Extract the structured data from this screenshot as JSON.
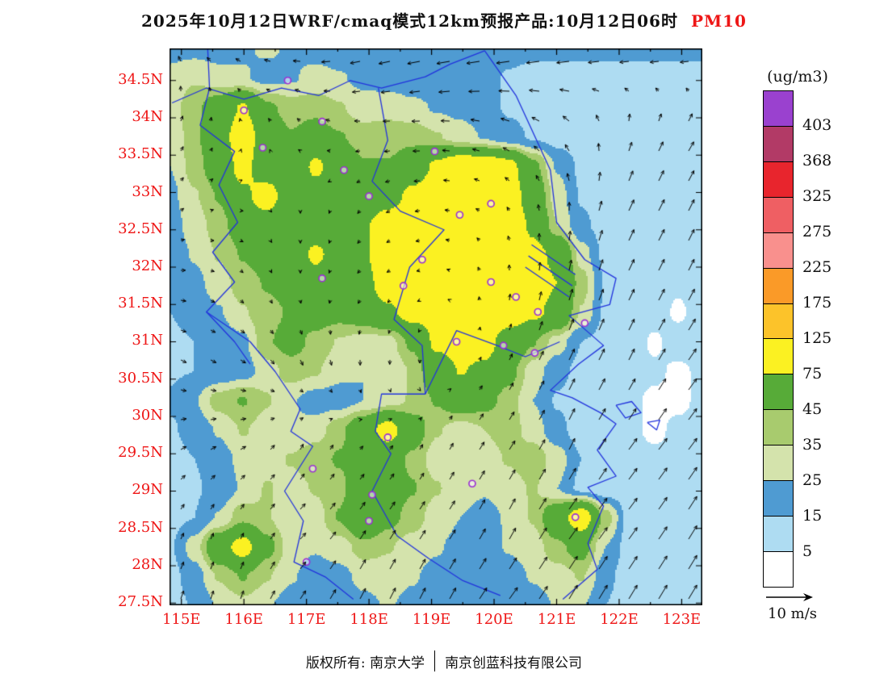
{
  "footer": {
    "owner": "版权所有: 南京大学",
    "company": "南京创蓝科技有限公司"
  },
  "chart_data": {
    "type": "heatmap",
    "title": "2025年10月12日WRF/cmaq模式12km预报产品:10月12日06时",
    "species": "PM10",
    "units": "(ug/m3)",
    "lon_range": [
      114.81,
      123.33
    ],
    "lat_range": [
      27.47,
      34.93
    ],
    "lon_ticks": [
      {
        "value": 115,
        "label": "115E"
      },
      {
        "value": 116,
        "label": "116E"
      },
      {
        "value": 117,
        "label": "117E"
      },
      {
        "value": 118,
        "label": "118E"
      },
      {
        "value": 119,
        "label": "119E"
      },
      {
        "value": 120,
        "label": "120E"
      },
      {
        "value": 121,
        "label": "121E"
      },
      {
        "value": 122,
        "label": "122E"
      },
      {
        "value": 123,
        "label": "123E"
      }
    ],
    "lat_ticks": [
      {
        "value": 34.5,
        "label": "34.5N"
      },
      {
        "value": 34,
        "label": "34N"
      },
      {
        "value": 33.5,
        "label": "33.5N"
      },
      {
        "value": 33,
        "label": "33N"
      },
      {
        "value": 32.5,
        "label": "32.5N"
      },
      {
        "value": 32,
        "label": "32N"
      },
      {
        "value": 31.5,
        "label": "31.5N"
      },
      {
        "value": 31,
        "label": "31N"
      },
      {
        "value": 30.5,
        "label": "30.5N"
      },
      {
        "value": 30,
        "label": "30N"
      },
      {
        "value": 29.5,
        "label": "29.5N"
      },
      {
        "value": 29,
        "label": "29N"
      },
      {
        "value": 28.5,
        "label": "28.5N"
      },
      {
        "value": 28,
        "label": "28N"
      },
      {
        "value": 27.5,
        "label": "27.5N"
      }
    ],
    "levels": [
      5,
      15,
      25,
      35,
      45,
      75,
      125,
      175,
      225,
      275,
      325,
      368,
      403
    ],
    "level_colors": [
      "#ffffff",
      "#aedcf2",
      "#4f9bd2",
      "#d4e3ac",
      "#a8cb6e",
      "#57ab38",
      "#fbf122",
      "#fcc32a",
      "#fa9a28",
      "#f9908d",
      "#ef5f63",
      "#e8252d",
      "#b23a66",
      "#9a41cf"
    ],
    "colors": {
      "axis_labels": "#ee1616",
      "boundaries": "#2233dd",
      "stations": "#9b30d4",
      "arrows": "#000000",
      "title_species": "#ee1616"
    },
    "pm10_grid": {
      "nx": 23,
      "ny": 20,
      "lon_order": "west-to-east",
      "lat_order": "north-to-south",
      "values": [
        [
          22,
          22,
          20,
          24,
          26,
          24,
          22,
          20,
          18,
          18,
          18,
          18,
          18,
          18,
          18,
          17,
          17,
          17,
          17,
          17,
          17,
          17,
          17
        ],
        [
          28,
          34,
          30,
          26,
          22,
          24,
          28,
          26,
          22,
          20,
          18,
          18,
          20,
          18,
          14,
          12,
          12,
          11,
          11,
          11,
          11,
          11,
          11
        ],
        [
          30,
          42,
          55,
          78,
          48,
          40,
          42,
          36,
          30,
          32,
          28,
          24,
          22,
          18,
          14,
          12,
          10,
          10,
          10,
          10,
          10,
          10,
          10
        ],
        [
          26,
          42,
          62,
          92,
          58,
          46,
          52,
          46,
          40,
          40,
          42,
          36,
          30,
          24,
          18,
          14,
          11,
          10,
          10,
          10,
          10,
          10,
          10
        ],
        [
          25,
          40,
          55,
          85,
          55,
          50,
          80,
          60,
          46,
          46,
          55,
          80,
          95,
          95,
          85,
          50,
          24,
          13,
          10,
          10,
          10,
          10,
          10
        ],
        [
          22,
          34,
          46,
          70,
          88,
          55,
          62,
          55,
          50,
          62,
          82,
          95,
          100,
          100,
          90,
          60,
          30,
          14,
          10,
          10,
          10,
          10,
          10
        ],
        [
          20,
          30,
          40,
          55,
          62,
          50,
          56,
          62,
          72,
          90,
          100,
          100,
          100,
          96,
          95,
          70,
          35,
          17,
          11,
          10,
          10,
          10,
          10
        ],
        [
          18,
          26,
          36,
          46,
          52,
          56,
          80,
          62,
          72,
          95,
          100,
          95,
          100,
          100,
          95,
          82,
          70,
          30,
          12,
          10,
          9,
          9,
          9
        ],
        [
          17,
          22,
          30,
          40,
          46,
          50,
          62,
          56,
          66,
          90,
          100,
          92,
          96,
          100,
          95,
          85,
          75,
          40,
          14,
          10,
          8,
          6,
          8
        ],
        [
          15,
          17,
          24,
          34,
          42,
          46,
          52,
          50,
          56,
          70,
          85,
          82,
          86,
          95,
          90,
          80,
          68,
          34,
          13,
          9,
          8,
          4,
          8
        ],
        [
          14,
          15,
          18,
          22,
          44,
          50,
          42,
          34,
          30,
          30,
          48,
          80,
          86,
          85,
          62,
          46,
          30,
          15,
          11,
          9,
          4,
          8,
          8
        ],
        [
          14,
          15,
          16,
          20,
          30,
          40,
          36,
          28,
          25,
          26,
          36,
          60,
          76,
          70,
          50,
          30,
          18,
          12,
          10,
          8,
          6,
          4,
          6
        ],
        [
          16,
          24,
          40,
          46,
          36,
          26,
          20,
          20,
          25,
          30,
          36,
          46,
          56,
          50,
          40,
          25,
          14,
          10,
          8,
          6,
          4,
          4,
          6
        ],
        [
          14,
          18,
          26,
          36,
          30,
          26,
          30,
          42,
          62,
          86,
          56,
          36,
          30,
          35,
          40,
          30,
          18,
          10,
          8,
          6,
          4,
          6,
          6
        ],
        [
          12,
          15,
          20,
          28,
          30,
          36,
          42,
          46,
          52,
          56,
          42,
          30,
          26,
          30,
          36,
          42,
          30,
          15,
          10,
          8,
          6,
          6,
          6
        ],
        [
          12,
          14,
          18,
          26,
          36,
          30,
          36,
          42,
          60,
          55,
          46,
          36,
          28,
          26,
          30,
          36,
          25,
          12,
          8,
          8,
          6,
          6,
          6
        ],
        [
          12,
          15,
          26,
          42,
          36,
          26,
          30,
          46,
          72,
          50,
          40,
          30,
          25,
          22,
          26,
          36,
          62,
          92,
          40,
          10,
          8,
          8,
          8
        ],
        [
          14,
          30,
          62,
          86,
          50,
          30,
          26,
          30,
          40,
          36,
          30,
          26,
          22,
          20,
          26,
          30,
          42,
          52,
          25,
          10,
          8,
          8,
          8
        ],
        [
          12,
          20,
          36,
          46,
          36,
          26,
          20,
          22,
          28,
          30,
          26,
          22,
          18,
          18,
          20,
          26,
          30,
          36,
          18,
          9,
          8,
          8,
          8
        ],
        [
          11,
          16,
          26,
          32,
          26,
          20,
          18,
          18,
          22,
          26,
          22,
          18,
          15,
          15,
          18,
          20,
          26,
          26,
          15,
          9,
          8,
          8,
          8
        ]
      ]
    },
    "wind": {
      "ncols": 9,
      "nrows": 8,
      "reference_label": "10 m/s",
      "reference_ms": 10,
      "u": [
        [
          -1,
          -2,
          -3,
          -4,
          -5,
          -5,
          -5,
          -4,
          -4
        ],
        [
          1,
          0,
          -1,
          -2,
          -3,
          -3,
          -2,
          1,
          2
        ],
        [
          1,
          1,
          0,
          -1,
          -2,
          -1,
          0,
          2,
          2
        ],
        [
          2,
          1,
          0,
          -1,
          -1,
          0,
          1,
          2,
          2
        ],
        [
          2,
          2,
          1,
          0,
          0,
          1,
          2,
          2,
          3
        ],
        [
          2,
          2,
          1,
          1,
          1,
          2,
          2,
          3,
          3
        ],
        [
          1,
          1,
          2,
          2,
          2,
          2,
          3,
          3,
          3
        ],
        [
          1,
          1,
          2,
          2,
          2,
          3,
          3,
          3,
          3
        ]
      ],
      "v": [
        [
          2,
          1,
          0,
          -1,
          -1,
          -1,
          -1,
          -1,
          -1
        ],
        [
          2,
          1,
          1,
          0,
          0,
          1,
          2,
          3,
          3
        ],
        [
          1,
          0,
          -1,
          -1,
          0,
          1,
          3,
          4,
          4
        ],
        [
          0,
          -1,
          -1,
          -1,
          0,
          2,
          4,
          4,
          4
        ],
        [
          -1,
          -1,
          -2,
          -2,
          -1,
          2,
          4,
          4,
          4
        ],
        [
          1,
          1,
          2,
          1,
          2,
          3,
          4,
          4,
          4
        ],
        [
          2,
          2,
          2,
          3,
          3,
          4,
          4,
          4,
          5
        ],
        [
          3,
          3,
          3,
          4,
          4,
          4,
          5,
          5,
          5
        ]
      ]
    },
    "boundaries": [
      [
        [
          114.85,
          34.2
        ],
        [
          115.4,
          34.4
        ],
        [
          116.0,
          34.25
        ],
        [
          116.6,
          34.4
        ],
        [
          117.2,
          34.3
        ],
        [
          117.7,
          34.5
        ],
        [
          118.2,
          34.4
        ],
        [
          118.9,
          34.55
        ],
        [
          119.3,
          34.72
        ],
        [
          119.85,
          34.9
        ]
      ],
      [
        [
          115.42,
          34.93
        ],
        [
          115.45,
          34.4
        ],
        [
          115.3,
          33.9
        ],
        [
          115.85,
          33.55
        ],
        [
          115.6,
          33.1
        ],
        [
          115.9,
          32.6
        ],
        [
          115.5,
          32.2
        ],
        [
          115.85,
          31.8
        ],
        [
          115.4,
          31.4
        ],
        [
          115.85,
          31.0
        ],
        [
          116.1,
          30.7
        ]
      ],
      [
        [
          118.15,
          34.4
        ],
        [
          118.3,
          33.7
        ],
        [
          118.05,
          33.15
        ],
        [
          118.5,
          32.75
        ],
        [
          119.2,
          32.5
        ],
        [
          118.65,
          32.0
        ],
        [
          118.4,
          31.3
        ],
        [
          118.85,
          30.95
        ],
        [
          118.9,
          30.3
        ]
      ],
      [
        [
          118.9,
          30.3
        ],
        [
          118.2,
          30.3
        ],
        [
          118.1,
          29.8
        ],
        [
          118.35,
          29.5
        ],
        [
          118.05,
          29.0
        ],
        [
          118.45,
          28.4
        ],
        [
          118.95,
          28.1
        ],
        [
          119.5,
          27.8
        ],
        [
          120.1,
          27.6
        ]
      ],
      [
        [
          118.9,
          30.3
        ],
        [
          119.4,
          31.15
        ],
        [
          120.05,
          30.95
        ],
        [
          120.5,
          30.8
        ],
        [
          121.05,
          31.0
        ]
      ],
      [
        [
          115.4,
          31.4
        ],
        [
          116.1,
          31.0
        ],
        [
          116.5,
          30.6
        ],
        [
          116.9,
          30.1
        ],
        [
          116.75,
          29.8
        ],
        [
          117.1,
          29.6
        ],
        [
          116.65,
          29.0
        ],
        [
          116.95,
          28.6
        ],
        [
          116.8,
          28.05
        ],
        [
          117.3,
          27.85
        ],
        [
          117.75,
          27.55
        ]
      ],
      [
        [
          119.85,
          34.9
        ],
        [
          120.35,
          34.3
        ],
        [
          120.9,
          33.3
        ],
        [
          121.0,
          32.6
        ],
        [
          121.45,
          32.1
        ],
        [
          121.95,
          31.85
        ],
        [
          121.85,
          31.5
        ],
        [
          121.2,
          31.35
        ],
        [
          121.75,
          30.95
        ],
        [
          121.35,
          30.7
        ],
        [
          120.9,
          30.35
        ],
        [
          121.25,
          30.25
        ],
        [
          121.7,
          30.05
        ],
        [
          121.95,
          29.9
        ],
        [
          121.65,
          29.55
        ],
        [
          121.95,
          29.2
        ],
        [
          121.5,
          29.05
        ],
        [
          121.75,
          28.8
        ],
        [
          121.5,
          28.3
        ],
        [
          121.65,
          27.95
        ],
        [
          121.1,
          27.55
        ]
      ],
      [
        [
          120.6,
          32.3
        ],
        [
          121.3,
          31.9
        ]
      ],
      [
        [
          120.55,
          32.15
        ],
        [
          121.25,
          31.75
        ]
      ],
      [
        [
          120.5,
          32.0
        ],
        [
          121.2,
          31.6
        ]
      ],
      [
        [
          121.95,
          30.15
        ],
        [
          122.2,
          30.2
        ],
        [
          122.35,
          30.05
        ],
        [
          122.1,
          29.98
        ],
        [
          121.95,
          30.15
        ]
      ],
      [
        [
          122.45,
          29.92
        ],
        [
          122.65,
          29.95
        ],
        [
          122.6,
          29.82
        ],
        [
          122.45,
          29.92
        ]
      ]
    ],
    "stations": [
      [
        116.7,
        34.5
      ],
      [
        116.0,
        34.1
      ],
      [
        117.25,
        33.95
      ],
      [
        116.3,
        33.6
      ],
      [
        119.05,
        33.55
      ],
      [
        117.6,
        33.3
      ],
      [
        118.0,
        32.95
      ],
      [
        119.45,
        32.7
      ],
      [
        119.95,
        32.85
      ],
      [
        118.85,
        32.1
      ],
      [
        117.25,
        31.85
      ],
      [
        118.55,
        31.75
      ],
      [
        119.95,
        31.8
      ],
      [
        120.35,
        31.6
      ],
      [
        120.7,
        31.4
      ],
      [
        121.45,
        31.25
      ],
      [
        119.4,
        31.0
      ],
      [
        120.15,
        30.95
      ],
      [
        120.65,
        30.85
      ],
      [
        118.3,
        29.72
      ],
      [
        117.1,
        29.3
      ],
      [
        119.65,
        29.1
      ],
      [
        118.05,
        28.95
      ],
      [
        118.0,
        28.6
      ],
      [
        121.3,
        28.65
      ],
      [
        117.0,
        28.05
      ]
    ]
  }
}
